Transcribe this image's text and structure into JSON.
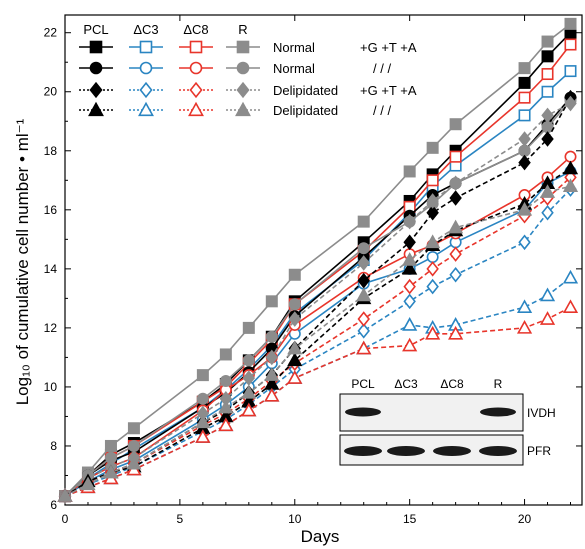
{
  "chart_data": {
    "type": "line",
    "xlabel": "Days",
    "ylabel": "Log₁₀ of cumulative cell number • ml⁻¹",
    "xlim": [
      0,
      22.5
    ],
    "ylim": [
      6,
      22.6
    ],
    "x_ticks": [
      0,
      5,
      10,
      15,
      20
    ],
    "y_ticks": [
      6,
      8,
      10,
      12,
      14,
      16,
      18,
      20,
      22
    ],
    "x_tick_labels": [
      "0",
      "5",
      "10",
      "15",
      "20"
    ],
    "y_tick_labels": [
      "6",
      "8",
      "10",
      "12",
      "14",
      "16",
      "18",
      "20",
      "22"
    ],
    "grid": false,
    "legend": {
      "placement": "top-left",
      "column_headers": [
        "PCL",
        "ΔC3",
        "ΔC8",
        "R"
      ],
      "rows": [
        {
          "condition": "Normal",
          "supplements": "+G +T +A"
        },
        {
          "condition": "Normal",
          "supplements": "/ / /"
        },
        {
          "condition": "Delipidated",
          "supplements": "+G +T +A"
        },
        {
          "condition": "Delipidated",
          "supplements": "/ / /"
        }
      ]
    },
    "colors": {
      "PCL": "#000000",
      "dC3": "#2a85c2",
      "dC8": "#e8352b",
      "R": "#8c8c8c"
    },
    "series": [
      {
        "name": "PCL",
        "line": "solid",
        "marker": "square",
        "filled": true,
        "x": [
          0,
          1,
          2,
          3,
          6,
          7,
          8,
          9,
          10,
          13,
          15,
          16,
          17,
          20,
          21,
          22
        ],
        "y": [
          6.3,
          7.0,
          7.7,
          8.1,
          9.5,
          10.1,
          10.9,
          11.7,
          12.9,
          14.9,
          16.3,
          17.2,
          18.0,
          20.3,
          21.2,
          22.0
        ]
      },
      {
        "name": "ΔC3",
        "line": "solid",
        "marker": "square",
        "filled": false,
        "x": [
          0,
          1,
          2,
          3,
          6,
          7,
          8,
          9,
          10,
          13,
          15,
          16,
          17,
          20,
          21,
          22
        ],
        "y": [
          6.3,
          6.9,
          7.4,
          7.9,
          9.3,
          9.9,
          10.6,
          11.4,
          12.5,
          14.3,
          15.9,
          16.8,
          17.5,
          19.2,
          20.0,
          20.7
        ]
      },
      {
        "name": "ΔC8",
        "line": "solid",
        "marker": "square",
        "filled": false,
        "x": [
          0,
          1,
          2,
          3,
          6,
          7,
          8,
          9,
          10,
          13,
          15,
          16,
          17,
          20,
          21,
          22
        ],
        "y": [
          6.3,
          7.0,
          7.6,
          8.0,
          9.5,
          10.0,
          10.8,
          11.6,
          12.8,
          14.6,
          16.1,
          17.0,
          17.8,
          19.8,
          20.6,
          21.6
        ]
      },
      {
        "name": "R",
        "line": "solid",
        "marker": "square",
        "filled": true,
        "x": [
          0,
          1,
          2,
          3,
          6,
          7,
          8,
          9,
          10,
          13,
          15,
          16,
          17,
          20,
          21,
          22
        ],
        "y": [
          6.3,
          7.1,
          8.0,
          8.6,
          10.4,
          11.1,
          12.0,
          12.9,
          13.8,
          15.6,
          17.3,
          18.1,
          18.9,
          20.8,
          21.7,
          22.3
        ]
      },
      {
        "name": "PCL",
        "line": "solid",
        "marker": "circle",
        "filled": true,
        "x": [
          0,
          1,
          2,
          3,
          6,
          7,
          8,
          9,
          10,
          13,
          15,
          16,
          17,
          20,
          21,
          22
        ],
        "y": [
          6.3,
          7.0,
          7.5,
          7.8,
          9.3,
          9.8,
          10.5,
          11.3,
          12.4,
          14.4,
          15.8,
          16.5,
          16.9,
          18.0,
          18.9,
          19.8
        ]
      },
      {
        "name": "ΔC3",
        "line": "solid",
        "marker": "circle",
        "filled": false,
        "x": [
          0,
          1,
          2,
          3,
          6,
          7,
          8,
          9,
          10,
          13,
          15,
          16,
          17,
          20,
          21,
          22
        ],
        "y": [
          6.3,
          6.8,
          7.2,
          7.5,
          8.9,
          9.4,
          10.0,
          10.8,
          11.8,
          13.5,
          14.0,
          14.4,
          14.9,
          16.0,
          16.9,
          17.3
        ]
      },
      {
        "name": "ΔC8",
        "line": "solid",
        "marker": "circle",
        "filled": false,
        "x": [
          0,
          1,
          2,
          3,
          6,
          7,
          8,
          9,
          10,
          13,
          15,
          16,
          17,
          20,
          21,
          22
        ],
        "y": [
          6.3,
          6.9,
          7.3,
          7.6,
          9.2,
          9.9,
          10.4,
          11.0,
          12.1,
          13.7,
          14.5,
          14.8,
          15.2,
          16.5,
          17.1,
          17.8
        ]
      },
      {
        "name": "R",
        "line": "solid",
        "marker": "circle",
        "filled": true,
        "x": [
          0,
          1,
          2,
          3,
          6,
          7,
          8,
          9,
          10,
          13,
          15,
          16,
          17,
          20,
          21,
          22
        ],
        "y": [
          6.3,
          7.0,
          7.6,
          8.0,
          9.6,
          10.2,
          10.9,
          11.7,
          12.8,
          14.7,
          15.6,
          16.2,
          16.9,
          18.0,
          18.8,
          19.7
        ]
      },
      {
        "name": "PCL",
        "line": "dashed",
        "marker": "diamond",
        "filled": true,
        "x": [
          0,
          1,
          2,
          3,
          6,
          7,
          8,
          9,
          10,
          13,
          15,
          16,
          17,
          20,
          21,
          22
        ],
        "y": [
          6.3,
          6.8,
          7.1,
          7.4,
          8.8,
          9.2,
          9.8,
          10.4,
          11.3,
          13.6,
          14.9,
          15.9,
          16.4,
          17.6,
          18.4,
          19.8
        ]
      },
      {
        "name": "ΔC3",
        "line": "dashed",
        "marker": "diamond",
        "filled": false,
        "x": [
          0,
          1,
          2,
          3,
          6,
          7,
          8,
          9,
          10,
          13,
          15,
          16,
          17,
          20,
          21,
          22
        ],
        "y": [
          6.3,
          6.7,
          7.0,
          7.3,
          8.5,
          8.9,
          9.4,
          10.0,
          10.6,
          11.9,
          12.9,
          13.4,
          13.8,
          14.9,
          15.9,
          16.7
        ]
      },
      {
        "name": "ΔC8",
        "line": "dashed",
        "marker": "diamond",
        "filled": false,
        "x": [
          0,
          1,
          2,
          3,
          6,
          7,
          8,
          9,
          10,
          13,
          15,
          16,
          17,
          20,
          21,
          22
        ],
        "y": [
          6.3,
          6.8,
          7.1,
          7.4,
          8.7,
          9.1,
          9.6,
          10.2,
          10.8,
          12.3,
          13.4,
          14.0,
          14.5,
          15.8,
          16.4,
          17.1
        ]
      },
      {
        "name": "R",
        "line": "dashed",
        "marker": "diamond",
        "filled": true,
        "x": [
          0,
          1,
          2,
          3,
          6,
          7,
          8,
          9,
          10,
          13,
          15,
          16,
          17,
          20,
          21,
          22
        ],
        "y": [
          6.3,
          6.9,
          7.3,
          7.6,
          9.1,
          9.6,
          10.3,
          11.0,
          12.3,
          14.2,
          15.6,
          16.3,
          16.9,
          18.4,
          19.2,
          19.6
        ]
      },
      {
        "name": "PCL",
        "line": "dashed",
        "marker": "triangle",
        "filled": true,
        "x": [
          0,
          1,
          2,
          3,
          6,
          7,
          8,
          9,
          10,
          13,
          15,
          16,
          17,
          20,
          21,
          22
        ],
        "y": [
          6.3,
          6.8,
          7.1,
          7.3,
          8.6,
          9.0,
          9.5,
          10.1,
          10.9,
          13.0,
          14.0,
          14.8,
          15.3,
          16.2,
          16.9,
          17.4
        ]
      },
      {
        "name": "ΔC3",
        "line": "dashed",
        "marker": "triangle",
        "filled": false,
        "x": [
          0,
          1,
          2,
          3,
          6,
          7,
          8,
          9,
          10,
          13,
          15,
          16,
          17,
          20,
          21,
          22
        ],
        "y": [
          6.3,
          6.6,
          6.9,
          7.2,
          8.3,
          8.7,
          9.2,
          9.7,
          10.3,
          11.3,
          12.1,
          12.0,
          12.1,
          12.7,
          13.1,
          13.7
        ]
      },
      {
        "name": "ΔC8",
        "line": "dashed",
        "marker": "triangle",
        "filled": false,
        "x": [
          0,
          1,
          2,
          3,
          6,
          7,
          8,
          9,
          10,
          13,
          15,
          16,
          17,
          20,
          21,
          22
        ],
        "y": [
          6.3,
          6.6,
          6.9,
          7.2,
          8.3,
          8.7,
          9.2,
          9.7,
          10.3,
          11.3,
          11.4,
          11.8,
          11.8,
          12.0,
          12.3,
          12.7
        ]
      },
      {
        "name": "R",
        "line": "dashed",
        "marker": "triangle",
        "filled": true,
        "x": [
          0,
          1,
          2,
          3,
          6,
          7,
          8,
          9,
          10,
          13,
          15,
          16,
          17,
          20,
          21,
          22
        ],
        "y": [
          6.3,
          6.7,
          7.1,
          7.4,
          8.8,
          9.3,
          9.8,
          10.4,
          11.3,
          13.1,
          14.3,
          14.9,
          15.4,
          16.0,
          16.6,
          16.8
        ]
      }
    ]
  },
  "blot": {
    "lane_labels": [
      "PCL",
      "ΔC3",
      "ΔC8",
      "R"
    ],
    "row_labels": [
      "IVDH",
      "PFR"
    ],
    "ivdh_band_present": [
      true,
      false,
      false,
      true
    ],
    "pfr_band_present": [
      true,
      true,
      true,
      true
    ]
  }
}
